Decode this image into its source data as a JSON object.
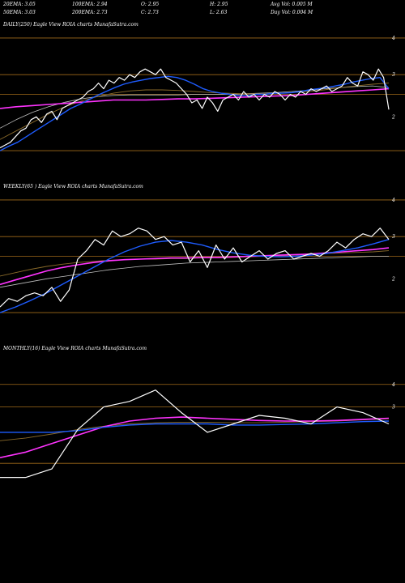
{
  "header": {
    "row1": [
      {
        "k": "20EMA:",
        "v": "3.05"
      },
      {
        "k": "100EMA:",
        "v": "2.94"
      },
      {
        "k": "O:",
        "v": "2.95"
      },
      {
        "k": "H:",
        "v": "2.95"
      },
      {
        "k": "Avg Vol:",
        "v": "0.005 M"
      }
    ],
    "row2": [
      {
        "k": "50EMA:",
        "v": "3.03"
      },
      {
        "k": "200EMA:",
        "v": "2.73"
      },
      {
        "k": "C:",
        "v": "2.73"
      },
      {
        "k": "L:",
        "v": "2.63"
      },
      {
        "k": "Day Vol:",
        "v": "0.004 M"
      }
    ]
  },
  "panels": {
    "daily": {
      "label": "DAILY(250) Eagle   View  ROIA charts MunafaSutra.com"
    },
    "weekly": {
      "label": "WEEKLY(65                          ) Eagle   View  ROIA charts MunafaSutra.com"
    },
    "monthly": {
      "label": "MONTHLY(16) Eagle   View  ROIA charts MunafaSutra.com"
    }
  },
  "colors": {
    "background": "#000000",
    "price": "#ffffff",
    "ema_fast": "#1e5cff",
    "ema_pink": "#ff33ff",
    "ema_slow": "#8a6a2a",
    "level_line": "#a06a1a"
  },
  "chart_data": [
    {
      "type": "line",
      "panel": "daily",
      "ylim": [
        1.8,
        4.1
      ],
      "yticks": [
        "4",
        "3",
        "2"
      ],
      "series": [
        {
          "values": [
            2.05,
            2.1,
            2.15,
            2.25,
            2.35,
            2.4,
            2.55,
            2.6,
            2.5,
            2.65,
            2.7,
            2.55,
            2.75,
            2.8,
            2.85,
            2.9,
            2.95,
            3.05,
            3.1,
            3.2,
            3.1,
            3.25,
            3.2,
            3.3,
            3.25,
            3.35,
            3.3,
            3.4,
            3.45,
            3.4,
            3.35,
            3.45,
            3.3,
            3.25,
            3.2,
            3.1,
            3.0,
            2.85,
            2.9,
            2.75,
            2.95,
            2.85,
            2.7,
            2.9,
            2.95,
            3.0,
            2.9,
            3.05,
            2.95,
            3.0,
            2.9,
            3.0,
            2.95,
            3.05,
            3.0,
            2.9,
            3.0,
            2.95,
            3.05,
            3.0,
            3.1,
            3.05,
            3.1,
            3.15,
            3.05,
            3.1,
            3.15,
            3.3,
            3.2,
            3.15,
            3.4,
            3.35,
            3.25,
            3.45,
            3.3,
            2.73
          ]
        },
        {
          "values": [
            2.0,
            2.08,
            2.15,
            2.25,
            2.35,
            2.45,
            2.55,
            2.65,
            2.75,
            2.82,
            2.9,
            2.98,
            3.05,
            3.12,
            3.18,
            3.22,
            3.25,
            3.28,
            3.3,
            3.32,
            3.3,
            3.25,
            3.18,
            3.1,
            3.05,
            3.02,
            3.0,
            2.98,
            2.98,
            3.0,
            3.0,
            3.02,
            3.02,
            3.03,
            3.05,
            3.08,
            3.1,
            3.12,
            3.15,
            3.18,
            3.22,
            3.25,
            3.28,
            3.3,
            3.1
          ]
        },
        {
          "values": [
            2.75,
            2.78,
            2.8,
            2.82,
            2.84,
            2.86,
            2.88,
            2.9,
            2.9,
            2.9,
            2.91,
            2.92,
            2.92,
            2.93,
            2.94,
            2.95,
            2.96,
            2.97,
            2.98,
            3.0,
            3.02,
            3.04,
            3.06,
            3.08,
            3.1
          ]
        },
        {
          "values": [
            2.2,
            2.35,
            2.5,
            2.65,
            2.78,
            2.88,
            2.96,
            3.02,
            3.06,
            3.08,
            3.08,
            3.07,
            3.05,
            3.03,
            3.02,
            3.01,
            3.01,
            3.02,
            3.03,
            3.05,
            3.08,
            3.12,
            3.15,
            3.18,
            3.2
          ]
        },
        {
          "values": [
            2.4,
            2.55,
            2.68,
            2.78,
            2.86,
            2.92,
            2.96,
            2.98,
            2.99,
            2.99,
            2.99,
            2.99,
            3.0,
            3.0,
            3.0,
            3.01,
            3.02,
            3.03,
            3.05,
            3.07,
            3.1,
            3.12,
            3.14,
            3.15,
            3.12
          ]
        }
      ]
    },
    {
      "type": "line",
      "panel": "weekly",
      "ylim": [
        1.8,
        4.1
      ],
      "yticks": [
        "4",
        "3",
        "2"
      ],
      "series": [
        {
          "values": [
            2.1,
            2.25,
            2.2,
            2.3,
            2.35,
            2.3,
            2.45,
            2.2,
            2.4,
            2.95,
            3.1,
            3.3,
            3.2,
            3.45,
            3.35,
            3.4,
            3.5,
            3.45,
            3.3,
            3.35,
            3.2,
            3.25,
            2.9,
            3.1,
            2.8,
            3.2,
            2.95,
            3.15,
            2.9,
            3.0,
            3.1,
            2.95,
            3.05,
            3.1,
            2.95,
            3.0,
            3.05,
            3.0,
            3.1,
            3.25,
            3.15,
            3.3,
            3.4,
            3.35,
            3.5,
            3.3
          ]
        },
        {
          "values": [
            2.0,
            2.1,
            2.22,
            2.35,
            2.5,
            2.65,
            2.8,
            2.95,
            3.08,
            3.18,
            3.25,
            3.28,
            3.25,
            3.2,
            3.12,
            3.06,
            3.02,
            3.0,
            2.99,
            3.0,
            3.02,
            3.05,
            3.1,
            3.15,
            3.22,
            3.3
          ]
        },
        {
          "values": [
            2.5,
            2.58,
            2.66,
            2.74,
            2.8,
            2.85,
            2.89,
            2.92,
            2.94,
            2.95,
            2.96,
            2.97,
            2.97,
            2.98,
            2.98,
            2.99,
            3.0,
            3.01,
            3.02,
            3.03,
            3.04,
            3.06,
            3.08,
            3.1,
            3.12,
            3.15
          ]
        },
        {
          "values": [
            2.65,
            2.71,
            2.77,
            2.82,
            2.86,
            2.89,
            2.91,
            2.93,
            2.94,
            2.95,
            2.95,
            2.96,
            2.96,
            2.97,
            2.97,
            2.98,
            2.99,
            3.0,
            3.01,
            3.02,
            3.04,
            3.05,
            3.06,
            3.07,
            3.08,
            3.1
          ]
        },
        {
          "values": [
            2.45,
            2.5,
            2.55,
            2.6,
            2.64,
            2.68,
            2.72,
            2.76,
            2.79,
            2.82,
            2.84,
            2.86,
            2.88,
            2.89,
            2.9,
            2.91,
            2.92,
            2.93,
            2.94,
            2.95,
            2.96,
            2.97,
            2.98,
            2.99,
            3.0,
            3.0
          ]
        }
      ]
    },
    {
      "type": "line",
      "panel": "monthly",
      "ylim": [
        1.8,
        4.1
      ],
      "yticks": [
        "4",
        "3"
      ],
      "series": [
        {
          "values": [
            1.95,
            1.95,
            2.1,
            2.8,
            3.2,
            3.3,
            3.5,
            3.1,
            2.75,
            2.9,
            3.05,
            3.0,
            2.9,
            3.2,
            3.1,
            2.9
          ]
        },
        {
          "values": [
            2.75,
            2.75,
            2.75,
            2.78,
            2.84,
            2.88,
            2.9,
            2.9,
            2.9,
            2.88,
            2.88,
            2.89,
            2.9,
            2.92,
            2.94,
            2.95
          ]
        },
        {
          "values": [
            2.3,
            2.4,
            2.55,
            2.7,
            2.85,
            2.95,
            3.0,
            3.02,
            3.0,
            2.98,
            2.96,
            2.95,
            2.95,
            2.96,
            2.98,
            3.0
          ]
        },
        {
          "values": [
            2.6,
            2.65,
            2.72,
            2.8,
            2.86,
            2.9,
            2.92,
            2.93,
            2.93,
            2.92,
            2.92,
            2.93,
            2.94,
            2.95,
            2.97,
            2.99
          ]
        }
      ]
    }
  ]
}
